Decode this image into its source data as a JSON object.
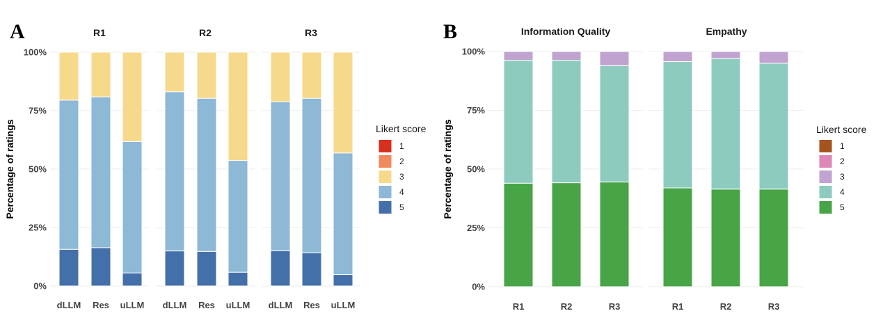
{
  "chart_data": [
    {
      "type": "bar",
      "stacked": true,
      "panel_label": "A",
      "ylabel": "Percentage of ratings",
      "yticks": [
        "0%",
        "25%",
        "50%",
        "75%",
        "100%"
      ],
      "ylim": [
        0,
        100
      ],
      "legend": {
        "title": "Likert score",
        "placement": "right",
        "levels": [
          "1",
          "2",
          "3",
          "4",
          "5"
        ],
        "colors": [
          "#d7301f",
          "#f08a5d",
          "#f7d98b",
          "#8db8d6",
          "#4470aa"
        ]
      },
      "facets": [
        {
          "title": "R1",
          "categories": [
            "dLLM",
            "Res",
            "uLLM"
          ],
          "series": [
            {
              "name": "1",
              "values": [
                0,
                0,
                0
              ]
            },
            {
              "name": "2",
              "values": [
                0,
                0,
                0
              ]
            },
            {
              "name": "3",
              "values": [
                20.5,
                19.1,
                38.2
              ]
            },
            {
              "name": "4",
              "values": [
                63.8,
                64.5,
                56.2
              ]
            },
            {
              "name": "5",
              "values": [
                15.7,
                16.4,
                5.6
              ]
            }
          ]
        },
        {
          "title": "R2",
          "categories": [
            "dLLM",
            "Res",
            "uLLM"
          ],
          "series": [
            {
              "name": "1",
              "values": [
                0,
                0,
                0
              ]
            },
            {
              "name": "2",
              "values": [
                0,
                0,
                0
              ]
            },
            {
              "name": "3",
              "values": [
                16.9,
                19.7,
                46.3
              ]
            },
            {
              "name": "4",
              "values": [
                68.1,
                65.5,
                47.8
              ]
            },
            {
              "name": "5",
              "values": [
                15.0,
                14.8,
                5.9
              ]
            }
          ]
        },
        {
          "title": "R3",
          "categories": [
            "dLLM",
            "Res",
            "uLLM"
          ],
          "series": [
            {
              "name": "1",
              "values": [
                0,
                0,
                0
              ]
            },
            {
              "name": "2",
              "values": [
                0,
                0,
                0
              ]
            },
            {
              "name": "3",
              "values": [
                21.2,
                19.7,
                43.1
              ]
            },
            {
              "name": "4",
              "values": [
                63.7,
                66.1,
                52.0
              ]
            },
            {
              "name": "5",
              "values": [
                15.1,
                14.2,
                4.9
              ]
            }
          ]
        }
      ]
    },
    {
      "type": "bar",
      "stacked": true,
      "panel_label": "B",
      "ylabel": "Percentage of ratings",
      "yticks": [
        "0%",
        "25%",
        "50%",
        "75%",
        "100%"
      ],
      "ylim": [
        0,
        100
      ],
      "legend": {
        "title": "Likert score",
        "placement": "right",
        "levels": [
          "1",
          "2",
          "3",
          "4",
          "5"
        ],
        "colors": [
          "#a6541f",
          "#de86b6",
          "#c0a3cf",
          "#8ecbbf",
          "#47a447"
        ]
      },
      "facets": [
        {
          "title": "Information Quality",
          "categories": [
            "R1",
            "R2",
            "R3"
          ],
          "series": [
            {
              "name": "1",
              "values": [
                0,
                0,
                0
              ]
            },
            {
              "name": "2",
              "values": [
                0,
                0,
                0
              ]
            },
            {
              "name": "3",
              "values": [
                3.7,
                3.7,
                6.0
              ]
            },
            {
              "name": "4",
              "values": [
                52.3,
                52.1,
                49.5
              ]
            },
            {
              "name": "5",
              "values": [
                44.0,
                44.2,
                44.5
              ]
            }
          ]
        },
        {
          "title": "Empathy",
          "categories": [
            "R1",
            "R2",
            "R3"
          ],
          "series": [
            {
              "name": "1",
              "values": [
                0,
                0,
                0
              ]
            },
            {
              "name": "2",
              "values": [
                0,
                0,
                0
              ]
            },
            {
              "name": "3",
              "values": [
                4.3,
                3.0,
                5.0
              ]
            },
            {
              "name": "4",
              "values": [
                53.7,
                55.5,
                53.5
              ]
            },
            {
              "name": "5",
              "values": [
                42.0,
                41.5,
                41.5
              ]
            }
          ]
        }
      ]
    }
  ]
}
